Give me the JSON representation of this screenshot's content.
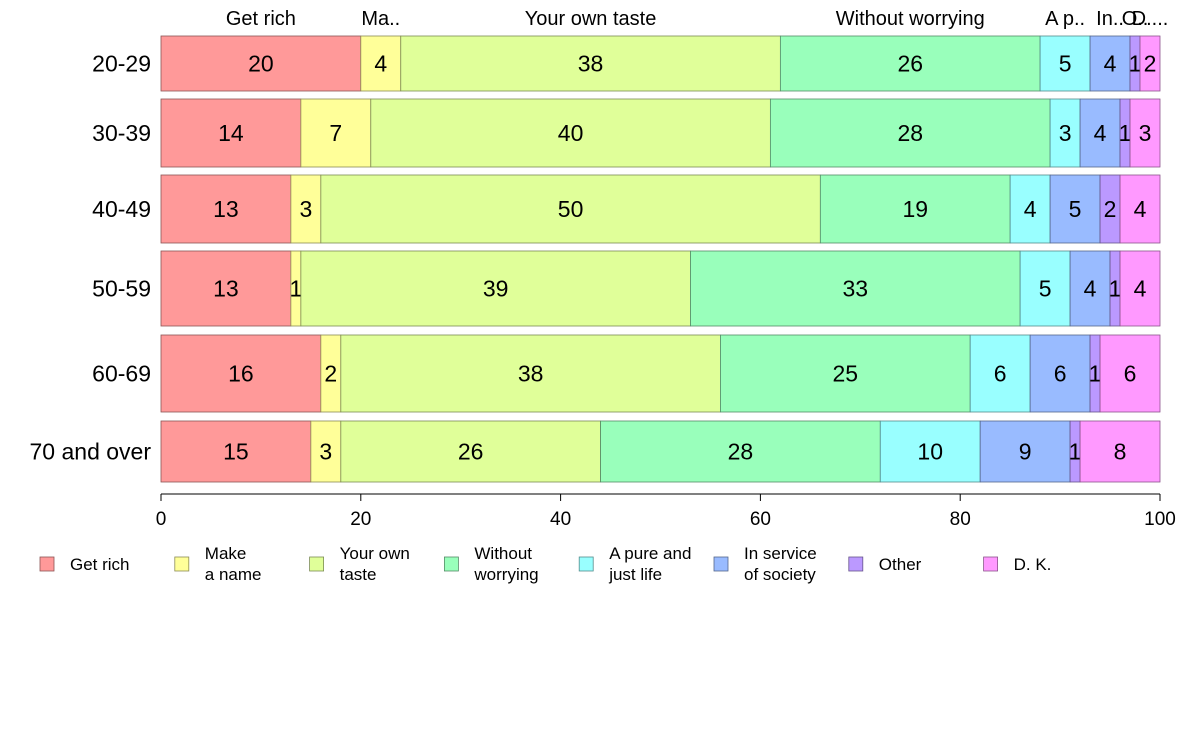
{
  "chart_data": {
    "type": "bar",
    "orientation": "horizontal",
    "stacked": true,
    "categories": [
      "20-29",
      "30-39",
      "40-49",
      "50-59",
      "60-69",
      "70 and over"
    ],
    "series": [
      {
        "name": "Get rich",
        "legend_lines": [
          "Get rich"
        ],
        "color": "#ff9999",
        "values": [
          20,
          14,
          13,
          13,
          16,
          15
        ]
      },
      {
        "name": "Make a name",
        "legend_lines": [
          "Make",
          "a name"
        ],
        "color": "#ffff99",
        "values": [
          4,
          7,
          3,
          1,
          2,
          3
        ]
      },
      {
        "name": "Your own taste",
        "legend_lines": [
          "Your own",
          "taste"
        ],
        "color": "#e0ff99",
        "values": [
          38,
          40,
          50,
          39,
          38,
          26
        ]
      },
      {
        "name": "Without worrying",
        "legend_lines": [
          "Without",
          "worrying"
        ],
        "color": "#99ffbb",
        "values": [
          26,
          28,
          19,
          33,
          25,
          28
        ]
      },
      {
        "name": "A pure and just life",
        "legend_lines": [
          "A pure and",
          "just life"
        ],
        "color": "#99ffff",
        "values": [
          5,
          3,
          4,
          5,
          6,
          10
        ]
      },
      {
        "name": "In service of society",
        "legend_lines": [
          "In service",
          "of society"
        ],
        "color": "#99bbff",
        "values": [
          4,
          4,
          5,
          4,
          6,
          9
        ]
      },
      {
        "name": "Other",
        "legend_lines": [
          "Other"
        ],
        "color": "#bb99ff",
        "values": [
          1,
          1,
          2,
          1,
          1,
          1
        ]
      },
      {
        "name": "D. K.",
        "legend_lines": [
          "D. K."
        ],
        "color": "#ff99ff",
        "values": [
          2,
          3,
          4,
          4,
          6,
          8
        ]
      }
    ],
    "top_labels": [
      "Get rich",
      "Ma..",
      "Your own taste",
      "Without worrying",
      "A p..",
      "In..",
      "O..",
      "D...."
    ],
    "xlim": [
      0,
      100
    ],
    "xticks": [
      0,
      20,
      40,
      60,
      80,
      100
    ],
    "grid": false,
    "legend_position": "bottom"
  }
}
